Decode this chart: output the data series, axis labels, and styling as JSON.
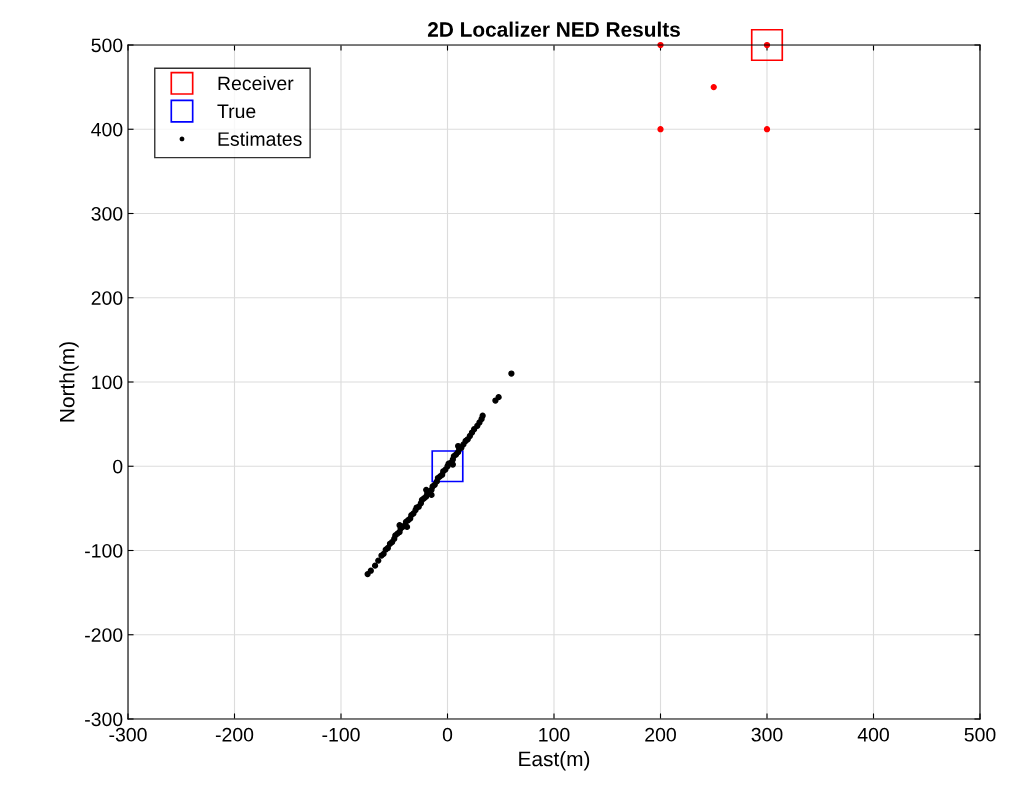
{
  "chart_data": {
    "type": "scatter",
    "title": "2D Localizer NED Results",
    "xlabel": "East(m)",
    "ylabel": "North(m)",
    "xlim": [
      -300,
      500
    ],
    "xticks": [
      -300,
      -200,
      -100,
      0,
      100,
      200,
      300,
      400,
      500
    ],
    "ylim": [
      -300,
      500
    ],
    "yticks": [
      -300,
      -200,
      -100,
      0,
      100,
      200,
      300,
      400,
      500
    ],
    "grid": true,
    "legend": "top left",
    "series": [
      {
        "name": "Receiver",
        "color": "#ff0000",
        "marker": "square",
        "x": [
          300
        ],
        "values": [
          500
        ]
      },
      {
        "name": "True",
        "color": "#0000ff",
        "marker": "square",
        "x": [
          0
        ],
        "values": [
          0
        ]
      },
      {
        "name": "Estimates",
        "color": "#000000",
        "marker": "circle",
        "x": [
          -75,
          -72,
          -68,
          -65,
          -62,
          -60,
          -58,
          -56,
          -54,
          -52,
          -50,
          -49,
          -47,
          -45,
          -44,
          -42,
          -40,
          -39,
          -37,
          -35,
          -34,
          -32,
          -30,
          -29,
          -27,
          -25,
          -24,
          -22,
          -20,
          -19,
          -15,
          -14,
          -12,
          -10,
          -9,
          -7,
          -5,
          -4,
          -2,
          0,
          1,
          3,
          5,
          6,
          8,
          10,
          11,
          13,
          15,
          17,
          19,
          21,
          23,
          25,
          28,
          30,
          32,
          33,
          45,
          48,
          60,
          -45,
          -38,
          -20,
          -15,
          5,
          10
        ],
        "values": [
          -128,
          -124,
          -118,
          -112,
          -106,
          -104,
          -99,
          -97,
          -92,
          -90,
          -86,
          -82,
          -80,
          -78,
          -74,
          -72,
          -70,
          -66,
          -64,
          -62,
          -58,
          -56,
          -52,
          -49,
          -48,
          -44,
          -40,
          -38,
          -36,
          -32,
          -28,
          -24,
          -22,
          -18,
          -14,
          -12,
          -10,
          -6,
          -4,
          0,
          3,
          4,
          8,
          12,
          14,
          17,
          21,
          22,
          26,
          30,
          32,
          36,
          40,
          44,
          48,
          52,
          56,
          60,
          78,
          82,
          110,
          -70,
          -72,
          -28,
          -34,
          2,
          24
        ]
      },
      {
        "color": "#ff0000",
        "marker": "circle",
        "x": [
          200,
          250,
          200,
          300,
          300
        ],
        "values": [
          500,
          450,
          400,
          400,
          500
        ]
      }
    ]
  }
}
